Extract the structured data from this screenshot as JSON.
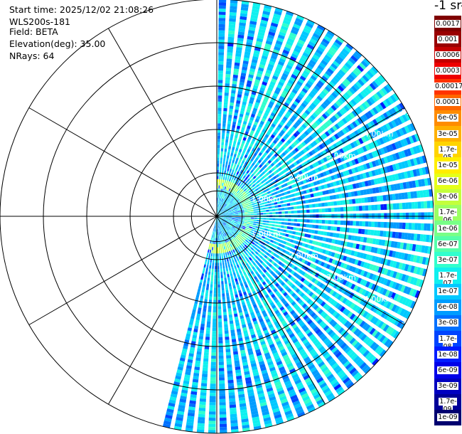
{
  "info": {
    "start_time": "Start time: 2025/12/02 21:08:26",
    "instrument": "WLS200s-181",
    "field": "Field: BETA",
    "elevation": "Elevation(deg): 35.00",
    "nrays": "NRays: 64"
  },
  "colorbar": {
    "unit_label": "-1 sr-",
    "labels": [
      "0.0017",
      "0.001",
      "0.0006",
      "0.0003",
      "0.00017",
      "0.0001",
      "6e-05",
      "3e-05",
      "1.7e-05",
      "1e-05",
      "6e-06",
      "3e-06",
      "1.7e-06",
      "1e-06",
      "6e-07",
      "3e-07",
      "1.7e-07",
      "1e-07",
      "6e-08",
      "3e-08",
      "1.7e-08",
      "1e-08",
      "6e-09",
      "3e-09",
      "1.7e-09",
      "1e-09"
    ],
    "colors": [
      "#7f0000",
      "#990000",
      "#c40000",
      "#ee0000",
      "#ff3300",
      "#ff6600",
      "#ff8c00",
      "#ffb000",
      "#ffd400",
      "#ffee00",
      "#e5ff1a",
      "#c3ff3c",
      "#9cff63",
      "#78ff87",
      "#55ffaa",
      "#32ffcd",
      "#10f0ef",
      "#00c8ff",
      "#009cff",
      "#0070ff",
      "#0044ff",
      "#001cff",
      "#0000e8",
      "#0000c0",
      "#000098",
      "#000070"
    ]
  },
  "chart_data": {
    "type": "polar_ppi",
    "field": "BETA",
    "elevation_deg": 35.0,
    "n_rays": 64,
    "sector_azimuth_deg": [
      0,
      195
    ],
    "max_range_km": 5.0,
    "range_rings_km": [
      1,
      2,
      3,
      4,
      5
    ],
    "range_ring_labels": [
      {
        "label": "1.00km",
        "az": 60
      },
      {
        "label": "2.00km",
        "az": 60
      },
      {
        "label": "3.00km",
        "az": 60
      },
      {
        "label": "4.00km",
        "az": 60
      },
      {
        "label": "5.00km",
        "az": 60
      },
      {
        "label": "1.00km",
        "az": 120
      },
      {
        "label": "2.00km",
        "az": 120
      },
      {
        "label": "3.00km",
        "az": 120
      },
      {
        "label": "4.00km",
        "az": 120
      },
      {
        "label": "5.00km",
        "az": 120
      }
    ],
    "spokes_az_deg": [
      0,
      30,
      60,
      90,
      120,
      150,
      180,
      210,
      240,
      270,
      300,
      330
    ],
    "near_field_ring_km": [
      0.65,
      0.85
    ],
    "colorscale": "log",
    "value_range": [
      1e-09,
      0.0017
    ]
  }
}
